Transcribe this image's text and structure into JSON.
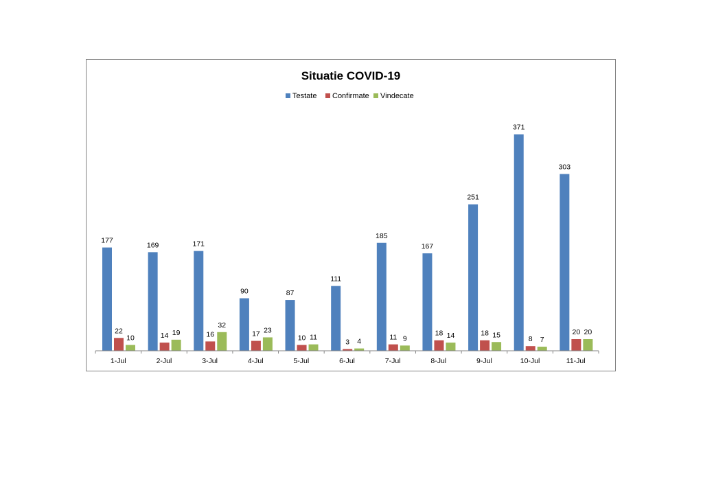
{
  "chart_data": {
    "type": "bar",
    "title": "Situatie COVID-19",
    "xlabel": "",
    "ylabel": "",
    "legend_position": "top",
    "grid": false,
    "categories": [
      "1-Jul",
      "2-Jul",
      "3-Jul",
      "4-Jul",
      "5-Jul",
      "6-Jul",
      "7-Jul",
      "8-Jul",
      "9-Jul",
      "10-Jul",
      "11-Jul"
    ],
    "ylim": [
      0,
      400
    ],
    "data_labels": true,
    "series": [
      {
        "name": "Testate",
        "color": "#4f81bd",
        "values": [
          177,
          169,
          171,
          90,
          87,
          111,
          185,
          167,
          251,
          371,
          303
        ]
      },
      {
        "name": "Confirmate",
        "color": "#c0504d",
        "values": [
          22,
          14,
          16,
          17,
          10,
          3,
          11,
          18,
          18,
          8,
          20
        ]
      },
      {
        "name": "Vindecate",
        "color": "#9bbb59",
        "values": [
          10,
          19,
          32,
          23,
          11,
          4,
          9,
          14,
          15,
          7,
          20
        ]
      }
    ]
  }
}
